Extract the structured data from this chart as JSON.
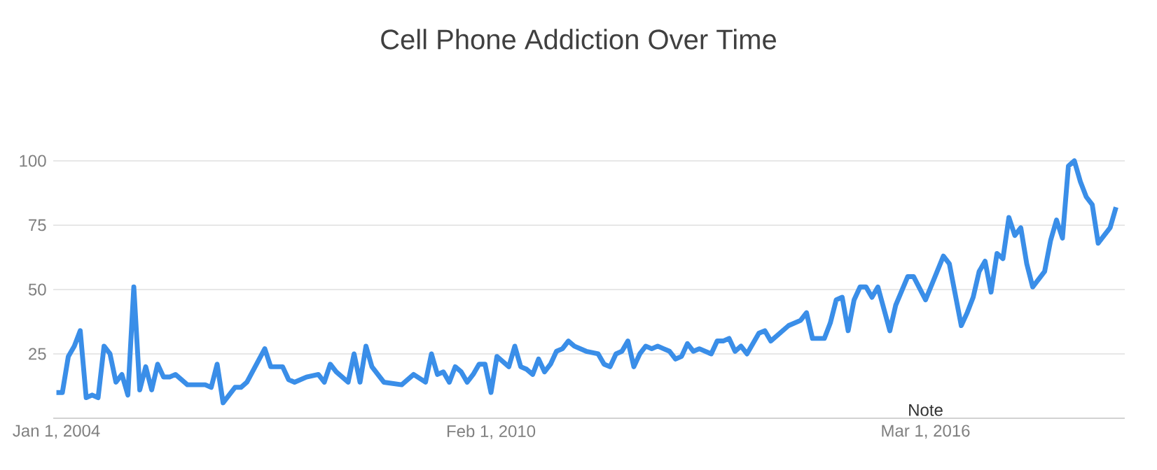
{
  "chart_data": {
    "type": "line",
    "title": "Cell Phone Addiction Over Time",
    "color": "#3a8ee8",
    "grid": "y",
    "xlim": [
      "2003-12-15",
      "2018-12-15"
    ],
    "ylim": [
      0,
      100
    ],
    "xticks": [
      {
        "value": "2004-01-01",
        "label": "Jan 1, 2004"
      },
      {
        "value": "2010-02-01",
        "label": "Feb 1, 2010"
      },
      {
        "value": "2016-03-01",
        "label": "Mar 1, 2016"
      }
    ],
    "yticks": [
      25,
      50,
      75,
      100
    ],
    "annotations": [
      "Note"
    ],
    "x": [
      "2004-01",
      "2004-02",
      "2004-03",
      "2004-04",
      "2004-05",
      "2004-06",
      "2004-07",
      "2004-08",
      "2004-09",
      "2004-10",
      "2004-11",
      "2004-12",
      "2005-01",
      "2005-02",
      "2005-03",
      "2005-04",
      "2005-05",
      "2005-06",
      "2005-07",
      "2005-08",
      "2005-09",
      "2005-11",
      "2006-02",
      "2006-03",
      "2006-04",
      "2006-05",
      "2006-06",
      "2006-07",
      "2006-08",
      "2006-09",
      "2006-12",
      "2007-01",
      "2007-03",
      "2007-04",
      "2007-05",
      "2007-07",
      "2007-09",
      "2007-10",
      "2007-11",
      "2007-12",
      "2008-01",
      "2008-02",
      "2008-03",
      "2008-04",
      "2008-05",
      "2008-06",
      "2008-07",
      "2008-08",
      "2008-11",
      "2008-12",
      "2009-01",
      "2009-03",
      "2009-04",
      "2009-05",
      "2009-06",
      "2009-07",
      "2009-08",
      "2009-09",
      "2009-10",
      "2009-11",
      "2009-12",
      "2010-01",
      "2010-02",
      "2010-03",
      "2010-05",
      "2010-06",
      "2010-07",
      "2010-08",
      "2010-09",
      "2010-10",
      "2010-11",
      "2010-12",
      "2011-01",
      "2011-02",
      "2011-03",
      "2011-04",
      "2011-06",
      "2011-08",
      "2011-09",
      "2011-10",
      "2011-11",
      "2011-12",
      "2012-01",
      "2012-02",
      "2012-03",
      "2012-04",
      "2012-05",
      "2012-06",
      "2012-07",
      "2012-08",
      "2012-09",
      "2012-10",
      "2012-11",
      "2012-12",
      "2013-01",
      "2013-03",
      "2013-04",
      "2013-05",
      "2013-06",
      "2013-07",
      "2013-08",
      "2013-09",
      "2013-10",
      "2013-11",
      "2013-12",
      "2014-01",
      "2014-03",
      "2014-04",
      "2014-06",
      "2014-07",
      "2014-08",
      "2014-10",
      "2014-11",
      "2014-12",
      "2015-01",
      "2015-02",
      "2015-03",
      "2015-04",
      "2015-05",
      "2015-06",
      "2015-07",
      "2015-09",
      "2015-10",
      "2015-12",
      "2016-01",
      "2016-03",
      "2016-06",
      "2016-07",
      "2016-08",
      "2016-09",
      "2016-10",
      "2016-11",
      "2016-12",
      "2017-01",
      "2017-02",
      "2017-03",
      "2017-04",
      "2017-05",
      "2017-06",
      "2017-07",
      "2017-08",
      "2017-09",
      "2017-11",
      "2017-12",
      "2018-01",
      "2018-02",
      "2018-03",
      "2018-04",
      "2018-05",
      "2018-06",
      "2018-07",
      "2018-08",
      "2018-09",
      "2018-10",
      "2018-11"
    ],
    "values": [
      10,
      10,
      24,
      28,
      34,
      8,
      9,
      8,
      28,
      25,
      14,
      17,
      9,
      51,
      11,
      20,
      11,
      21,
      16,
      16,
      17,
      13,
      13,
      12,
      21,
      6,
      9,
      12,
      12,
      14,
      27,
      20,
      20,
      15,
      14,
      16,
      17,
      14,
      21,
      18,
      16,
      14,
      25,
      14,
      28,
      20,
      17,
      14,
      13,
      15,
      17,
      14,
      25,
      17,
      18,
      14,
      20,
      18,
      14,
      17,
      21,
      21,
      10,
      24,
      20,
      28,
      20,
      19,
      17,
      23,
      18,
      21,
      26,
      27,
      30,
      28,
      26,
      25,
      21,
      20,
      25,
      26,
      30,
      20,
      25,
      28,
      27,
      28,
      27,
      26,
      23,
      24,
      29,
      26,
      27,
      25,
      30,
      30,
      31,
      26,
      28,
      25,
      29,
      33,
      34,
      30,
      34,
      36,
      38,
      41,
      31,
      31,
      37,
      46,
      47,
      34,
      46,
      51,
      51,
      47,
      51,
      34,
      44,
      55,
      55,
      46,
      63,
      60,
      48,
      36,
      41,
      47,
      57,
      61,
      49,
      64,
      62,
      78,
      71,
      74,
      60,
      51,
      57,
      69,
      77,
      70,
      98,
      100,
      92,
      86,
      83,
      68,
      71,
      74,
      82
    ]
  }
}
